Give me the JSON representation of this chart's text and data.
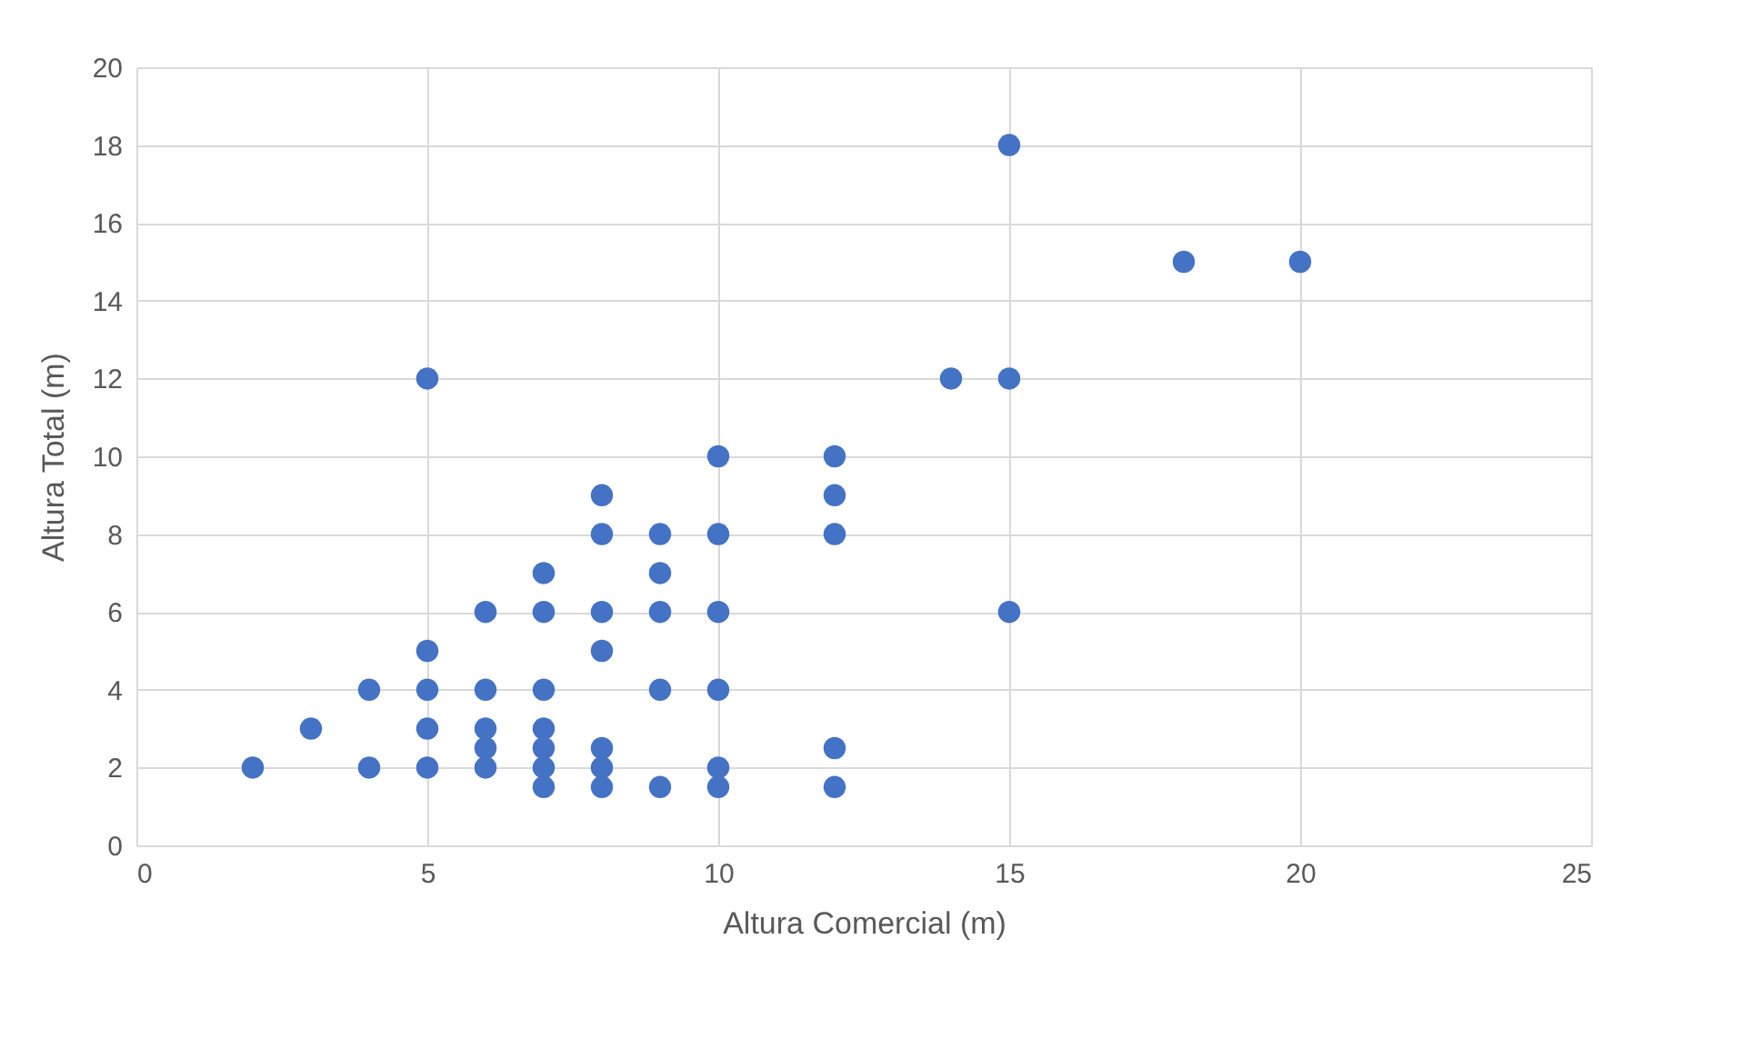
{
  "chart_data": {
    "type": "scatter",
    "xlabel": "Altura Comercial (m)",
    "ylabel": "Altura Total (m)",
    "xlim": [
      0,
      25
    ],
    "xticks": [
      0,
      5,
      10,
      15,
      20,
      25
    ],
    "ylim": [
      0,
      20
    ],
    "yticks": [
      0,
      2,
      4,
      6,
      8,
      10,
      12,
      14,
      16,
      18,
      20
    ],
    "grid": true,
    "marker": "circle",
    "series": [
      {
        "color": "#4472c4",
        "x": [
          2,
          3,
          4,
          4,
          5,
          5,
          5,
          5,
          5,
          6,
          6,
          6,
          6,
          6,
          7,
          7,
          7,
          7,
          7,
          7,
          7,
          8,
          8,
          8,
          8,
          8,
          8,
          8,
          9,
          9,
          9,
          9,
          9,
          10,
          10,
          10,
          10,
          10,
          10,
          12,
          12,
          12,
          12,
          12,
          14,
          15,
          15,
          15,
          18,
          20
        ],
        "values": [
          2,
          3,
          4,
          2,
          12,
          5,
          4,
          3,
          2,
          6,
          4,
          3,
          2.5,
          2,
          7,
          6,
          4,
          3,
          2.5,
          2,
          1.5,
          9,
          8,
          6,
          5,
          2.5,
          2,
          1.5,
          8,
          7,
          6,
          4,
          1.5,
          10,
          8,
          6,
          4,
          2,
          1.5,
          10,
          9,
          8,
          2.5,
          1.5,
          12,
          18,
          12,
          6,
          15,
          15
        ]
      }
    ]
  }
}
